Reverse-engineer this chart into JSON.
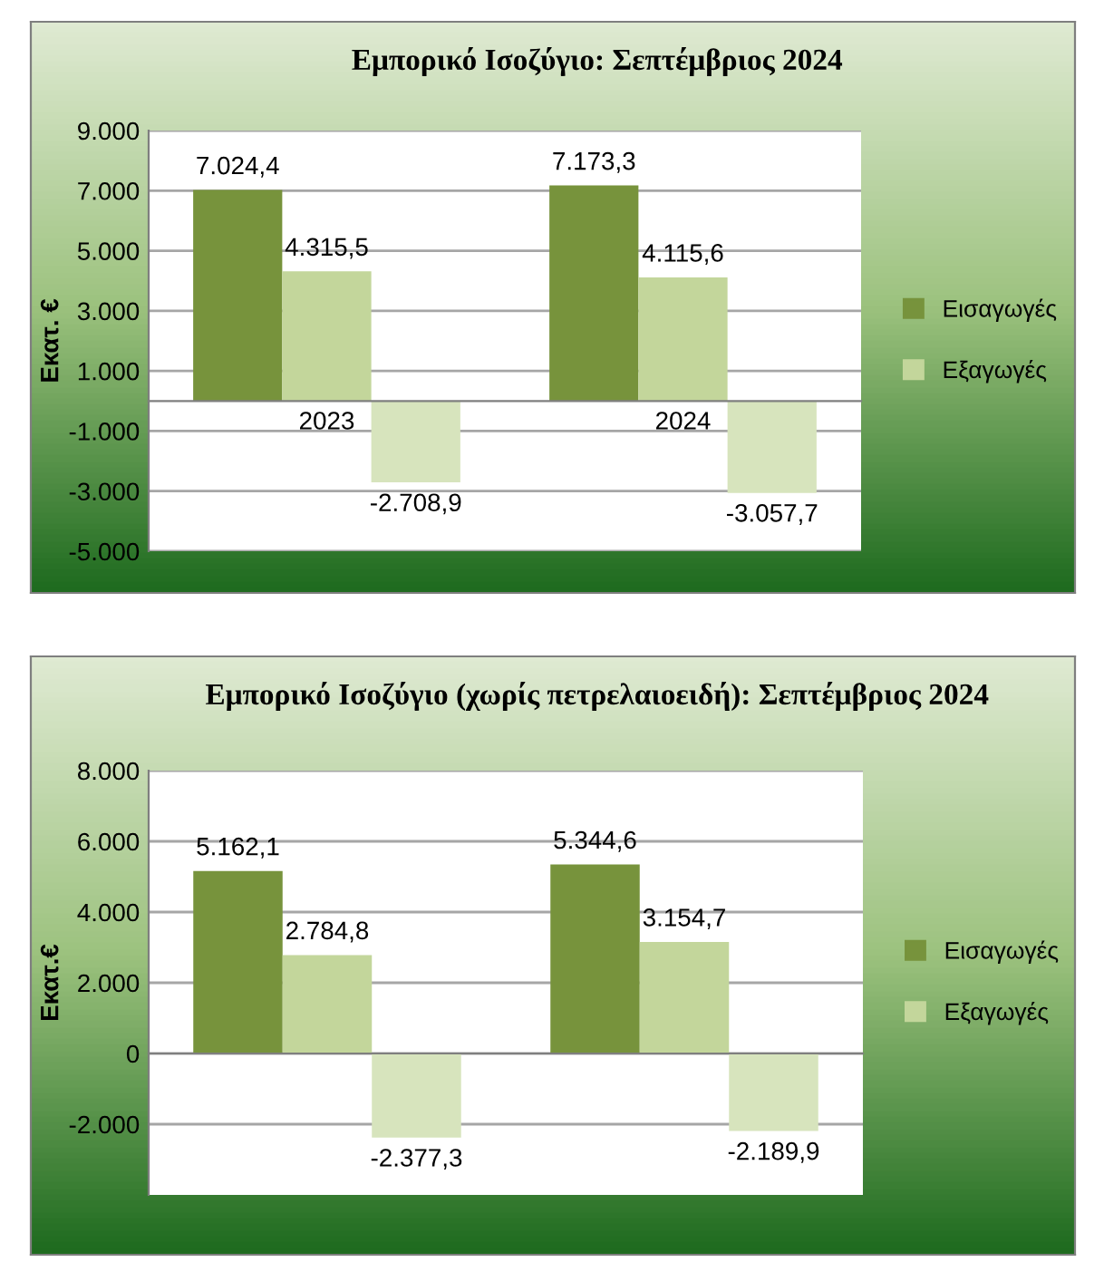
{
  "chart_data": [
    {
      "type": "bar",
      "title": "Εμπορικό Ισοζύγιο: Σεπτέμβριος 2024",
      "ylabel": "Εκατ. €",
      "categories": [
        "2023",
        "2024"
      ],
      "series": [
        {
          "name": "Εισαγωγές",
          "color": "#77933c",
          "values": [
            7024.4,
            7173.3
          ],
          "value_labels": [
            "7.024,4",
            "7.173,3"
          ]
        },
        {
          "name": "Εξαγωγές",
          "color": "#c3d69b",
          "values": [
            4315.5,
            4115.6
          ],
          "value_labels": [
            "4.315,5",
            "4.115,6"
          ]
        },
        {
          "color": "#d7e4bd",
          "values": [
            -2708.9,
            -3057.7
          ],
          "value_labels": [
            "-2.708,9",
            "-3.057,7"
          ]
        }
      ],
      "ylim": [
        -5000,
        9000
      ],
      "yticks": [
        {
          "value": 9000,
          "label": "9.000"
        },
        {
          "value": 7000,
          "label": "7.000"
        },
        {
          "value": 5000,
          "label": "5.000"
        },
        {
          "value": 3000,
          "label": "3.000"
        },
        {
          "value": 1000,
          "label": "1.000"
        },
        {
          "value": -1000,
          "label": "-1.000"
        },
        {
          "value": -3000,
          "label": "-3.000"
        },
        {
          "value": -5000,
          "label": "-5.000"
        }
      ],
      "grid": "y",
      "legend": "right"
    },
    {
      "type": "bar",
      "title": "Εμπορικό Ισοζύγιο (χωρίς πετρελαιοειδή): Σεπτέμβριος 2024",
      "ylabel": "Εκατ.€",
      "categories": [
        null,
        null
      ],
      "series": [
        {
          "name": "Εισαγωγές",
          "color": "#77933c",
          "values": [
            5162.1,
            5344.6
          ],
          "value_labels": [
            "5.162,1",
            "5.344,6"
          ]
        },
        {
          "name": "Εξαγωγές",
          "color": "#c3d69b",
          "values": [
            2784.8,
            3154.7
          ],
          "value_labels": [
            "2.784,8",
            "3.154,7"
          ]
        },
        {
          "color": "#d7e4bd",
          "values": [
            -2377.3,
            -2189.9
          ],
          "value_labels": [
            "-2.377,3",
            "-2.189,9"
          ]
        }
      ],
      "ylim": [
        -4000,
        8000
      ],
      "yticks": [
        {
          "value": 8000,
          "label": "8.000"
        },
        {
          "value": 6000,
          "label": "6.000"
        },
        {
          "value": 4000,
          "label": "4.000"
        },
        {
          "value": 2000,
          "label": "2.000"
        },
        {
          "value": 0,
          "label": "0"
        },
        {
          "value": -2000,
          "label": "-2.000"
        }
      ],
      "grid": "y",
      "legend": "right"
    }
  ]
}
